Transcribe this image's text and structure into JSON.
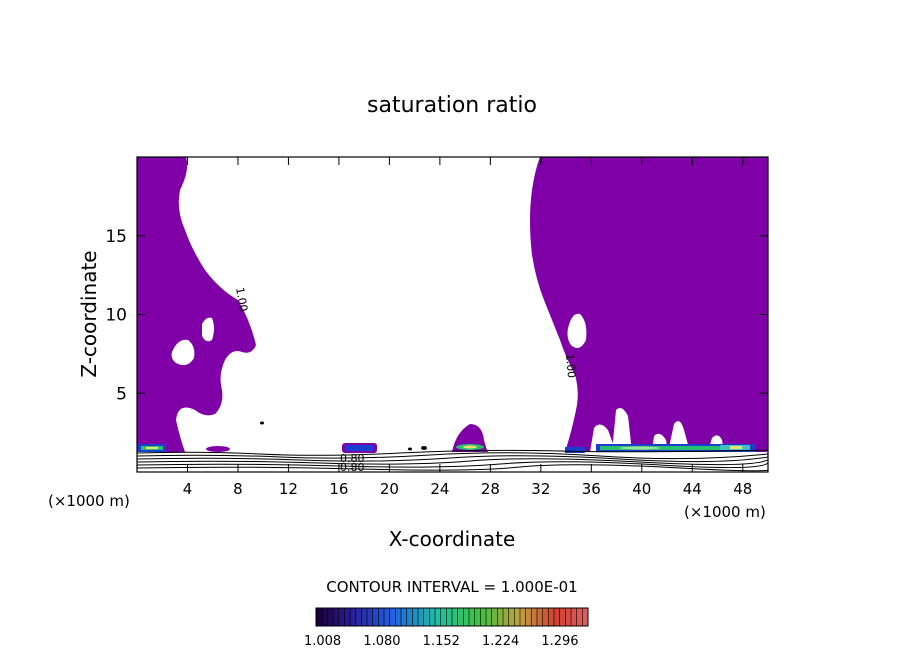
{
  "chart_data": {
    "type": "heatmap",
    "title": "saturation ratio",
    "xlabel": "X-coordinate",
    "ylabel": "Z-coordinate",
    "x_unit_left": "(×1000 m)",
    "x_unit_right": "(×1000 m)",
    "xlim": [
      0,
      50
    ],
    "ylim": [
      0,
      20
    ],
    "x_ticks": [
      4,
      8,
      12,
      16,
      20,
      24,
      28,
      32,
      36,
      40,
      44,
      48
    ],
    "y_ticks": [
      5,
      10,
      15
    ],
    "contour_interval_label": "CONTOUR INTERVAL = 1.000E-01",
    "contour_labels": [
      {
        "text": "1.00",
        "x": 7.9,
        "z": 10.5,
        "angle": 80
      },
      {
        "text": "1.00",
        "x": 34.3,
        "z": 7.0,
        "angle": 85
      },
      {
        "text": "0.80",
        "x": 17.3,
        "z": 1.05,
        "angle": 0
      },
      {
        "text": "0.80",
        "x": 17.3,
        "z": 0.45,
        "angle": 0
      }
    ],
    "colorbar": {
      "ticks": [
        "1.008",
        "1.080",
        "1.152",
        "1.224",
        "1.296"
      ],
      "range": [
        1.0,
        1.33
      ]
    },
    "regions": [
      {
        "name": "supersaturated-left",
        "value": 1.01
      },
      {
        "name": "supersaturated-right",
        "value": 1.01
      }
    ],
    "colors": {
      "fill": "#7f00a6",
      "low_band": "#1a3fd0",
      "mid_band": "#26c070",
      "high_band": "#e8e070"
    }
  }
}
